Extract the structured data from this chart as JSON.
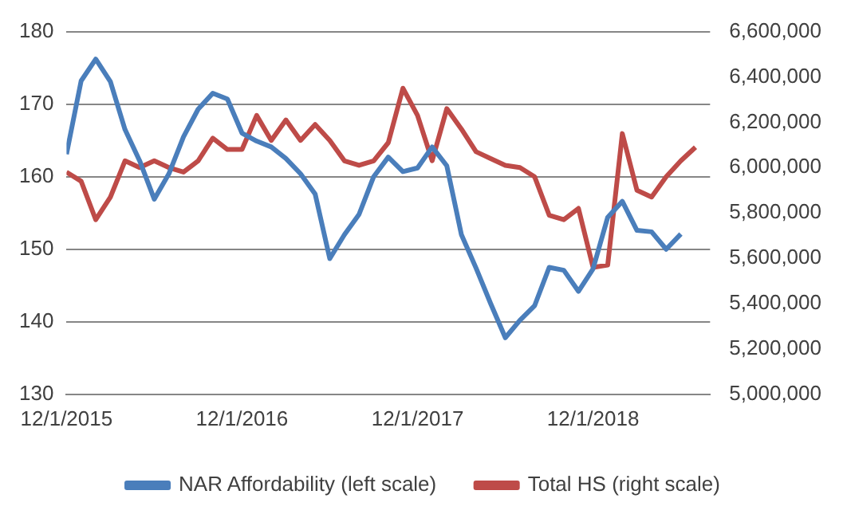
{
  "chart_data": {
    "type": "line",
    "x": [
      "2015-12",
      "2016-01",
      "2016-02",
      "2016-03",
      "2016-04",
      "2016-05",
      "2016-06",
      "2016-07",
      "2016-08",
      "2016-09",
      "2016-10",
      "2016-11",
      "2016-12",
      "2017-01",
      "2017-02",
      "2017-03",
      "2017-04",
      "2017-05",
      "2017-06",
      "2017-07",
      "2017-08",
      "2017-09",
      "2017-10",
      "2017-11",
      "2017-12",
      "2018-01",
      "2018-02",
      "2018-03",
      "2018-04",
      "2018-05",
      "2018-06",
      "2018-07",
      "2018-08",
      "2018-09",
      "2018-10",
      "2018-11",
      "2018-12",
      "2019-01",
      "2019-02",
      "2019-03",
      "2019-04",
      "2019-05",
      "2019-06",
      "2019-07"
    ],
    "series": [
      {
        "name": "NAR Affordability (left scale)",
        "color": "#4a7ebb",
        "values": [
          163.1,
          173.2,
          176.2,
          173.1,
          166.5,
          162.2,
          156.9,
          160.4,
          165.5,
          169.3,
          171.5,
          170.7,
          166.0,
          164.9,
          164.1,
          162.5,
          160.4,
          157.6,
          148.7,
          152.0,
          154.8,
          160.0,
          162.7,
          160.7,
          161.2,
          164.1,
          161.5,
          152.0,
          147.4,
          142.5,
          137.8,
          140.2,
          142.2,
          147.5,
          147.1,
          144.2,
          147.3,
          154.4,
          156.6,
          152.6,
          152.4,
          150.0,
          152.1,
          null
        ]
      },
      {
        "name": "Total HS (right scale)",
        "color": "#be4b48",
        "axis": "y2",
        "values": [
          5980000,
          5940000,
          5770000,
          5870000,
          6030000,
          6000000,
          6030000,
          6000000,
          5980000,
          6030000,
          6130000,
          6080000,
          6080000,
          6230000,
          6120000,
          6210000,
          6120000,
          6190000,
          6120000,
          6030000,
          6010000,
          6030000,
          6110000,
          6350000,
          6230000,
          6030000,
          6260000,
          6170000,
          6070000,
          6040000,
          6010000,
          6000000,
          5960000,
          5790000,
          5770000,
          5820000,
          5560000,
          5570000,
          6150000,
          5900000,
          5870000,
          5960000,
          6030000,
          6090000
        ]
      }
    ],
    "xlim": [
      "2015-12",
      "2019-08"
    ],
    "xticks": [
      {
        "value": "2015-12",
        "label": "12/1/2015"
      },
      {
        "value": "2016-12",
        "label": "12/1/2016"
      },
      {
        "value": "2017-12",
        "label": "12/1/2017"
      },
      {
        "value": "2018-12",
        "label": "12/1/2018"
      }
    ],
    "ylim": [
      130,
      180
    ],
    "yticks": [
      130,
      140,
      150,
      160,
      170,
      180
    ],
    "y2lim": [
      5000000,
      6600000
    ],
    "y2ticks": [
      {
        "value": 5000000,
        "label": "5,000,000"
      },
      {
        "value": 5200000,
        "label": "5,200,000"
      },
      {
        "value": 5400000,
        "label": "5,400,000"
      },
      {
        "value": 5600000,
        "label": "5,600,000"
      },
      {
        "value": 5800000,
        "label": "5,800,000"
      },
      {
        "value": 6000000,
        "label": "6,000,000"
      },
      {
        "value": 6200000,
        "label": "6,200,000"
      },
      {
        "value": 6400000,
        "label": "6,400,000"
      },
      {
        "value": 6600000,
        "label": "6,600,000"
      }
    ],
    "grid": "y",
    "legend": "bottom",
    "marker": "none",
    "line_style": "solid"
  }
}
